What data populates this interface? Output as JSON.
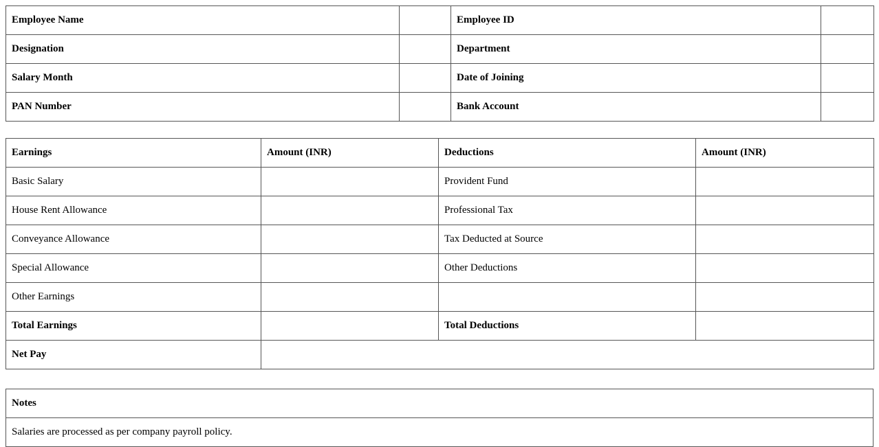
{
  "employee_info": {
    "rows": [
      {
        "left_label": "Employee Name",
        "left_value": "",
        "right_label": "Employee ID",
        "right_value": ""
      },
      {
        "left_label": "Designation",
        "left_value": "",
        "right_label": "Department",
        "right_value": ""
      },
      {
        "left_label": "Salary Month",
        "left_value": "",
        "right_label": "Date of Joining",
        "right_value": ""
      },
      {
        "left_label": "PAN Number",
        "left_value": "",
        "right_label": "Bank Account",
        "right_value": ""
      }
    ]
  },
  "salary": {
    "headers": [
      "Earnings",
      "Amount (INR)",
      "Deductions",
      "Amount (INR)"
    ],
    "rows": [
      {
        "earning": "Basic Salary",
        "earning_amount": "",
        "deduction": "Provident Fund",
        "deduction_amount": ""
      },
      {
        "earning": "House Rent Allowance",
        "earning_amount": "",
        "deduction": "Professional Tax",
        "deduction_amount": ""
      },
      {
        "earning": "Conveyance Allowance",
        "earning_amount": "",
        "deduction": "Tax Deducted at Source",
        "deduction_amount": ""
      },
      {
        "earning": "Special Allowance",
        "earning_amount": "",
        "deduction": "Other Deductions",
        "deduction_amount": ""
      },
      {
        "earning": "Other Earnings",
        "earning_amount": "",
        "deduction": "",
        "deduction_amount": ""
      }
    ],
    "totals": {
      "earnings_label": "Total Earnings",
      "earnings_value": "",
      "deductions_label": "Total Deductions",
      "deductions_value": ""
    },
    "net_pay": {
      "label": "Net Pay",
      "value": ""
    }
  },
  "notes": {
    "title": "Notes",
    "text": "Salaries are processed as per company payroll policy."
  }
}
